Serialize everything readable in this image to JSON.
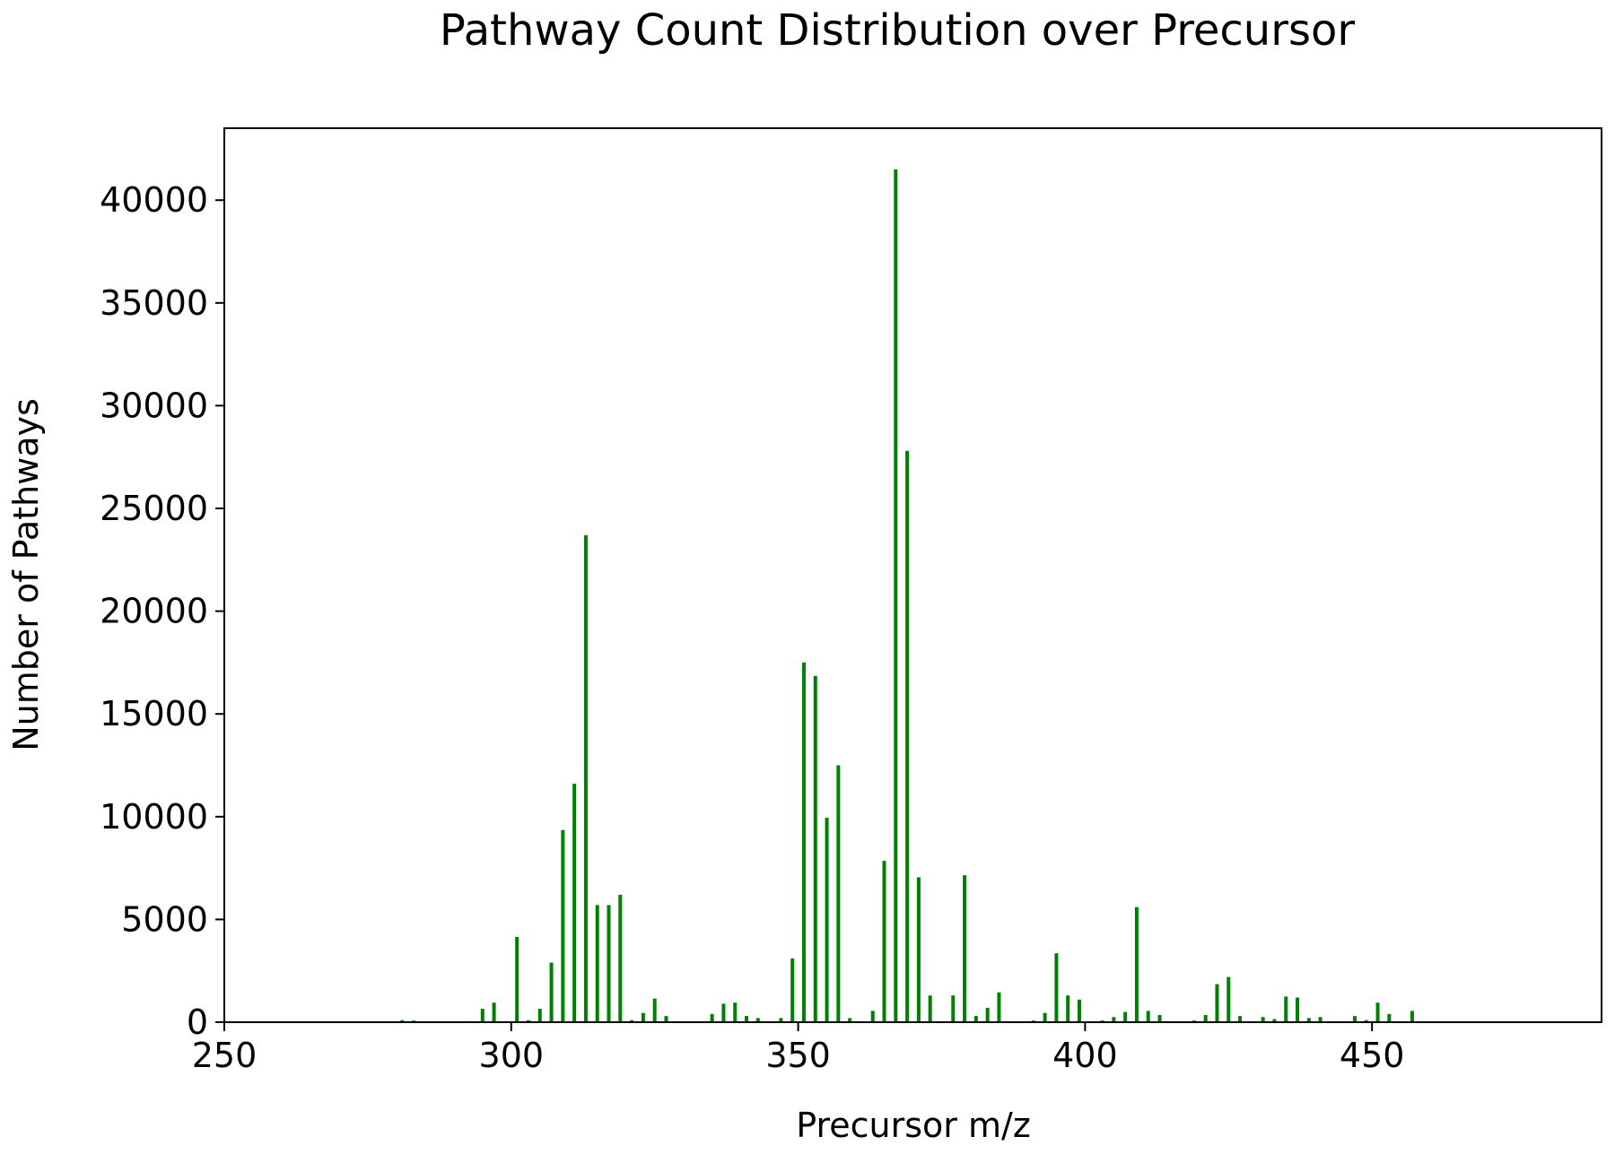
{
  "chart_data": {
    "type": "bar",
    "title": "Pathway Count Distribution over Precursor",
    "xlabel": "Precursor m/z",
    "ylabel": "Number of Pathways",
    "xlim": [
      250,
      490
    ],
    "ylim": [
      0,
      43500
    ],
    "xticks": [
      250,
      300,
      350,
      400,
      450
    ],
    "yticks": [
      0,
      5000,
      10000,
      15000,
      20000,
      25000,
      30000,
      35000,
      40000
    ],
    "grid": false,
    "legend": "none",
    "bar_color": "#008000",
    "x": [
      281,
      283,
      293,
      295,
      297,
      301,
      303,
      305,
      307,
      309,
      311,
      313,
      315,
      317,
      319,
      321,
      323,
      325,
      327,
      335,
      337,
      339,
      341,
      343,
      347,
      349,
      351,
      353,
      355,
      357,
      359,
      363,
      365,
      367,
      369,
      371,
      373,
      377,
      379,
      381,
      383,
      385,
      391,
      393,
      395,
      397,
      399,
      403,
      405,
      407,
      409,
      411,
      413,
      419,
      421,
      423,
      425,
      427,
      431,
      433,
      435,
      437,
      439,
      441,
      447,
      449,
      451,
      453,
      457
    ],
    "values": [
      100,
      80,
      50,
      650,
      950,
      4150,
      100,
      650,
      2900,
      9350,
      11600,
      23700,
      5700,
      5700,
      6200,
      100,
      450,
      1150,
      300,
      400,
      900,
      950,
      300,
      200,
      200,
      3100,
      17500,
      16850,
      9950,
      12500,
      200,
      550,
      7850,
      41500,
      27800,
      7050,
      1300,
      1300,
      7150,
      300,
      700,
      1450,
      80,
      450,
      3350,
      1300,
      1100,
      80,
      250,
      500,
      5600,
      550,
      350,
      80,
      350,
      1850,
      2200,
      300,
      250,
      150,
      1250,
      1200,
      200,
      250,
      300,
      100,
      950,
      400,
      550
    ]
  }
}
